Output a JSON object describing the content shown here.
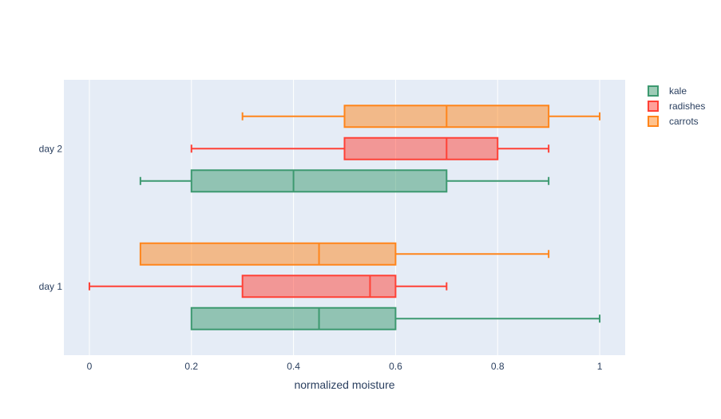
{
  "chart_data": {
    "type": "box",
    "orientation": "horizontal",
    "xlabel": "normalized moisture",
    "xlim": [
      -0.05,
      1.05
    ],
    "xticks": [
      0,
      0.2,
      0.4,
      0.6,
      0.8,
      1
    ],
    "xtick_labels": [
      "0",
      "0.2",
      "0.4",
      "0.6",
      "0.8",
      "1"
    ],
    "categories": [
      "day 1",
      "day 2"
    ],
    "grid": true,
    "legend_position": "top-right",
    "series": [
      {
        "name": "kale",
        "color": "#3d9970",
        "boxes": [
          {
            "category": "day 1",
            "min": 0.2,
            "q1": 0.2,
            "median": 0.45,
            "q3": 0.6,
            "max": 1.0
          },
          {
            "category": "day 2",
            "min": 0.1,
            "q1": 0.2,
            "median": 0.4,
            "q3": 0.7,
            "max": 0.9
          }
        ]
      },
      {
        "name": "radishes",
        "color": "#ff4136",
        "boxes": [
          {
            "category": "day 1",
            "min": 0.0,
            "q1": 0.3,
            "median": 0.55,
            "q3": 0.6,
            "max": 0.7
          },
          {
            "category": "day 2",
            "min": 0.2,
            "q1": 0.5,
            "median": 0.7,
            "q3": 0.8,
            "max": 0.9
          }
        ]
      },
      {
        "name": "carrots",
        "color": "#ff851b",
        "boxes": [
          {
            "category": "day 1",
            "min": 0.1,
            "q1": 0.1,
            "median": 0.45,
            "q3": 0.6,
            "max": 0.9
          },
          {
            "category": "day 2",
            "min": 0.3,
            "q1": 0.5,
            "median": 0.7,
            "q3": 0.9,
            "max": 1.0
          }
        ]
      }
    ]
  }
}
